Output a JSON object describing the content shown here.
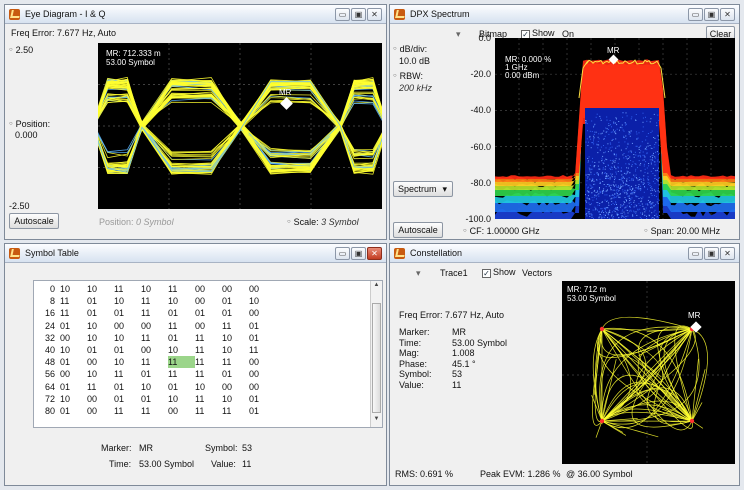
{
  "windows": {
    "eye": {
      "title": "Eye Diagram - I & Q",
      "freq_error": "Freq Error: 7.677 Hz, Auto",
      "y_top": "2.50",
      "y_bottom": "-2.50",
      "position_label": "Position:",
      "position_value": "0.000",
      "marker_line1": "MR: 712.333 m",
      "marker_line2": "53.00 Symbol",
      "marker_tag": "MR",
      "autoscale": "Autoscale",
      "pos_label": "Position:",
      "pos_value": "0 Symbol",
      "scale_label": "Scale:",
      "scale_value": "3 Symbol"
    },
    "dpx": {
      "title": "DPX Spectrum",
      "trace_label": "Bitmap",
      "show_label": "Show",
      "on_label": "On",
      "clear": "Clear",
      "db_div_label": "dB/div:",
      "db_div_value": "10.0 dB",
      "rbw_label": "RBW:",
      "rbw_value": "200 kHz",
      "y_ticks": [
        "0.0",
        "-20.0",
        "-40.0",
        "-60.0",
        "-80.0",
        "-100.0"
      ],
      "marker_line1": "MR: 0.000 %",
      "marker_line2": "1 GHz",
      "marker_line3": "0.00 dBm",
      "marker_tag": "MR",
      "spectrum_select": "Spectrum",
      "autoscale": "Autoscale",
      "cf": "CF: 1.00000 GHz",
      "span": "Span: 20.00 MHz"
    },
    "symbol": {
      "title": "Symbol Table",
      "rows": [
        [
          "0",
          "10",
          "10",
          "11",
          "10",
          "11",
          "00",
          "00",
          "00"
        ],
        [
          "8",
          "11",
          "01",
          "10",
          "11",
          "10",
          "00",
          "01",
          "10"
        ],
        [
          "16",
          "11",
          "01",
          "01",
          "11",
          "01",
          "01",
          "01",
          "00"
        ],
        [
          "24",
          "01",
          "10",
          "00",
          "00",
          "11",
          "00",
          "11",
          "01"
        ],
        [
          "32",
          "00",
          "10",
          "10",
          "11",
          "01",
          "11",
          "10",
          "01"
        ],
        [
          "40",
          "10",
          "01",
          "01",
          "00",
          "10",
          "11",
          "10",
          "11"
        ],
        [
          "48",
          "01",
          "00",
          "10",
          "11",
          "11",
          "11",
          "11",
          "00"
        ],
        [
          "56",
          "00",
          "10",
          "11",
          "01",
          "11",
          "11",
          "01",
          "00"
        ],
        [
          "64",
          "01",
          "11",
          "01",
          "10",
          "01",
          "10",
          "00",
          "00"
        ],
        [
          "72",
          "10",
          "00",
          "01",
          "01",
          "10",
          "11",
          "10",
          "01"
        ],
        [
          "80",
          "01",
          "00",
          "11",
          "11",
          "00",
          "11",
          "11",
          "01"
        ]
      ],
      "marker_label": "Marker:",
      "marker_value": "MR",
      "symbol_label": "Symbol:",
      "symbol_value": "53",
      "time_label": "Time:",
      "time_value": "53.00 Symbol",
      "value_label": "Value:",
      "value_value": "11"
    },
    "const": {
      "title": "Constellation",
      "trace_label": "Trace1",
      "show_label": "Show",
      "vectors_label": "Vectors",
      "freq_error": "Freq Error: 7.677 Hz, Auto",
      "info": [
        {
          "label": "Marker:",
          "value": "MR"
        },
        {
          "label": "Time:",
          "value": "53.00 Symbol"
        },
        {
          "label": "Mag:",
          "value": "1.008"
        },
        {
          "label": "Phase:",
          "value": "45.1 °"
        },
        {
          "label": "Symbol:",
          "value": "53"
        },
        {
          "label": "Value:",
          "value": "11"
        }
      ],
      "marker_line1": "MR: 712 m",
      "marker_line2": "53.00 Symbol",
      "marker_tag": "MR",
      "rms": "RMS: 0.691 %",
      "peak_evm": "Peak EVM: 1.286 %",
      "at_symbol": "@ 36.00 Symbol"
    }
  },
  "icons": {
    "minimize": "▭",
    "maximize": "▣",
    "close": "✕",
    "dropdown": "▾",
    "check": "✓"
  },
  "colors": {
    "trace_yellow": "#ffff30",
    "trace_blue": "#5ab4ff",
    "highlight_cell": "#9bd58a",
    "close_red": "#c33c22"
  }
}
